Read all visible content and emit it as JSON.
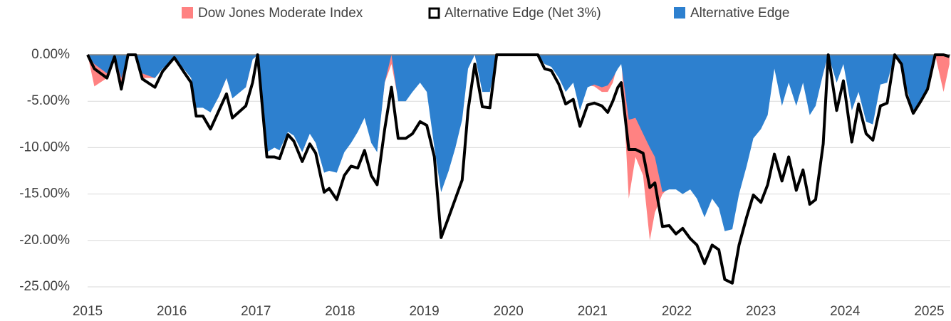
{
  "chart_data": {
    "type": "area",
    "x": [
      2015.0,
      2015.08,
      2015.23,
      2015.32,
      2015.4,
      2015.48,
      2015.57,
      2015.65,
      2015.8,
      2015.89,
      2016.03,
      2016.14,
      2016.23,
      2016.29,
      2016.37,
      2016.46,
      2016.56,
      2016.65,
      2016.72,
      2016.88,
      2016.96,
      2017.02,
      2017.13,
      2017.22,
      2017.28,
      2017.38,
      2017.45,
      2017.55,
      2017.64,
      2017.71,
      2017.81,
      2017.87,
      2017.96,
      2018.05,
      2018.13,
      2018.21,
      2018.29,
      2018.37,
      2018.44,
      2018.53,
      2018.61,
      2018.69,
      2018.78,
      2018.86,
      2018.95,
      2019.03,
      2019.12,
      2019.2,
      2019.29,
      2019.37,
      2019.45,
      2019.52,
      2019.6,
      2019.69,
      2019.78,
      2019.86,
      2020.35,
      2020.43,
      2020.51,
      2020.6,
      2020.68,
      2020.77,
      2020.85,
      2020.94,
      2021.02,
      2021.11,
      2021.18,
      2021.24,
      2021.3,
      2021.34,
      2021.43,
      2021.51,
      2021.6,
      2021.68,
      2021.74,
      2021.83,
      2021.91,
      2021.99,
      2022.07,
      2022.16,
      2022.24,
      2022.33,
      2022.42,
      2022.5,
      2022.57,
      2022.66,
      2022.74,
      2022.83,
      2022.91,
      2023.0,
      2023.08,
      2023.16,
      2023.25,
      2023.33,
      2023.42,
      2023.5,
      2023.58,
      2023.65,
      2023.74,
      2023.8,
      2023.9,
      2023.98,
      2024.08,
      2024.16,
      2024.25,
      2024.33,
      2024.42,
      2024.5,
      2024.59,
      2024.67,
      2024.73,
      2024.81,
      2024.9,
      2024.98,
      2025.07,
      2025.17,
      2025.24
    ],
    "series": [
      {
        "name": "Dow Jones Moderate Index",
        "kind": "area",
        "color": "#ff8282",
        "values": [
          0,
          -3.4,
          -2.5,
          -0.5,
          -3.5,
          0,
          0,
          -2.5,
          -2.5,
          -1,
          0,
          -1.5,
          -2,
          -5.5,
          -5.7,
          -6,
          -4.5,
          -2.5,
          -4.5,
          -3.5,
          -0.5,
          0,
          -10,
          -9.5,
          -10,
          -8,
          -8.5,
          -10,
          -8.3,
          -9.2,
          -12.5,
          -12.3,
          -12.5,
          -10.3,
          -9.3,
          -8.1,
          -6.6,
          -9.3,
          -10.3,
          -3,
          -1,
          -4.8,
          -4.8,
          -3.8,
          -2.8,
          -3.8,
          -9.8,
          -14.5,
          -12.3,
          -9.8,
          -6.8,
          -1.3,
          0,
          -3.8,
          -3.8,
          0,
          0,
          -0.8,
          -1.1,
          -2.3,
          -3.8,
          -2.8,
          -5.8,
          -3.3,
          -3.4,
          -4,
          -4,
          -3,
          -1,
          0,
          -15.5,
          -11,
          -13,
          -20,
          -17,
          -15,
          -14.3,
          -14.3,
          -14.8,
          -14.3,
          -15.3,
          -17.3,
          -15.3,
          -16.3,
          -18.8,
          -18.6,
          -14.8,
          -11.8,
          -8.8,
          -7.8,
          -6.3,
          -1.3,
          -5.3,
          -2.8,
          -5.3,
          -2.8,
          -6.3,
          -5.3,
          -2,
          0,
          -2.8,
          -0.8,
          -5.8,
          -3.8,
          -7,
          -7.3,
          -3,
          -2.8,
          0,
          -0.8,
          -3.3,
          -6,
          -4.8,
          -3.8,
          0,
          -4,
          -1
        ]
      },
      {
        "name": "Alternative Edge (Net 3%)",
        "kind": "line",
        "color": "#000000",
        "values": [
          0,
          -1.5,
          -2.5,
          -0.2,
          -3.7,
          0,
          0,
          -2.6,
          -3.5,
          -1.8,
          -0.3,
          -1.8,
          -3,
          -6.6,
          -6.6,
          -8,
          -6,
          -4.2,
          -6.8,
          -5.5,
          -3,
          0,
          -11,
          -11,
          -11.2,
          -8.6,
          -9.3,
          -11.5,
          -9.6,
          -10.6,
          -14.8,
          -14.4,
          -15.6,
          -13,
          -12,
          -12.2,
          -10.3,
          -13,
          -14,
          -8,
          -3.5,
          -9,
          -9,
          -8.5,
          -7.2,
          -7.6,
          -11,
          -19.7,
          -17.5,
          -15.5,
          -13.5,
          -6,
          -1,
          -5.6,
          -5.7,
          0,
          0,
          -1.5,
          -1.7,
          -3.2,
          -5.3,
          -4.8,
          -7.7,
          -5.4,
          -5.2,
          -5.5,
          -6.2,
          -5,
          -3.5,
          -3,
          -10.2,
          -10.2,
          -10.6,
          -14.3,
          -13.8,
          -18.5,
          -18.4,
          -19.3,
          -18.7,
          -19.8,
          -20.5,
          -22.5,
          -20.5,
          -21,
          -24.2,
          -24.6,
          -20.5,
          -17.5,
          -15.1,
          -15.9,
          -14,
          -10.7,
          -13.6,
          -11,
          -14.6,
          -12.4,
          -16.1,
          -15.6,
          -9.6,
          0,
          -6,
          -2.8,
          -9.4,
          -5.3,
          -8.5,
          -9.2,
          -5.5,
          -5.2,
          0,
          -1,
          -4.3,
          -6.3,
          -5,
          -3.7,
          0,
          0,
          -0.2
        ]
      },
      {
        "name": "Alternative Edge",
        "kind": "area",
        "color": "#2d80cf",
        "values": [
          0,
          -1,
          -2,
          0,
          -2.5,
          0,
          0,
          -2,
          -2.5,
          -1.5,
          -0.5,
          -1.5,
          -2.5,
          -5.7,
          -5.7,
          -6.2,
          -4.5,
          -2.5,
          -4.7,
          -3.5,
          -0.5,
          0,
          -10.5,
          -10,
          -10.3,
          -8.3,
          -8.7,
          -10.5,
          -8.5,
          -9.5,
          -12.7,
          -12.5,
          -12.7,
          -10.5,
          -9.5,
          -8.3,
          -6.8,
          -9.5,
          -10.5,
          -3,
          0,
          -5,
          -5,
          -4,
          -3,
          -4,
          -10,
          -14.8,
          -12.5,
          -10,
          -7,
          -1.5,
          0,
          -4,
          -4,
          0,
          0,
          -1,
          -1.3,
          -2.5,
          -4,
          -3,
          -6,
          -3.5,
          -3.2,
          -3.5,
          -3.3,
          -2.5,
          -1.5,
          -1,
          -7,
          -6.8,
          -8.5,
          -10,
          -11,
          -14.8,
          -14.5,
          -14.5,
          -15,
          -14.5,
          -15.5,
          -17.5,
          -15.5,
          -16.5,
          -19,
          -18.8,
          -15,
          -12,
          -9,
          -8,
          -6.5,
          -1.5,
          -5.5,
          -3,
          -5.5,
          -3,
          -6.5,
          -5.5,
          -2,
          0,
          -3,
          -1,
          -6,
          -4,
          -7.2,
          -7.5,
          -3.2,
          -3,
          0,
          -1,
          -3.5,
          -6.2,
          -5,
          -4,
          0,
          0,
          0
        ]
      }
    ],
    "xlim": [
      2015,
      2025.25
    ],
    "xticks": [
      2015,
      2016,
      2017,
      2018,
      2019,
      2020,
      2021,
      2022,
      2023,
      2024,
      2025
    ],
    "ylim": [
      -25,
      0
    ],
    "yticks": [
      {
        "value": 0,
        "label": "0.00%"
      },
      {
        "value": -5,
        "label": "-5.00%"
      },
      {
        "value": -10,
        "label": "-10.00%"
      },
      {
        "value": -15,
        "label": "-15.00%"
      },
      {
        "value": -20,
        "label": "-20.00%"
      },
      {
        "value": -25,
        "label": "-25.00%"
      }
    ],
    "grid": true,
    "legend": "top"
  }
}
